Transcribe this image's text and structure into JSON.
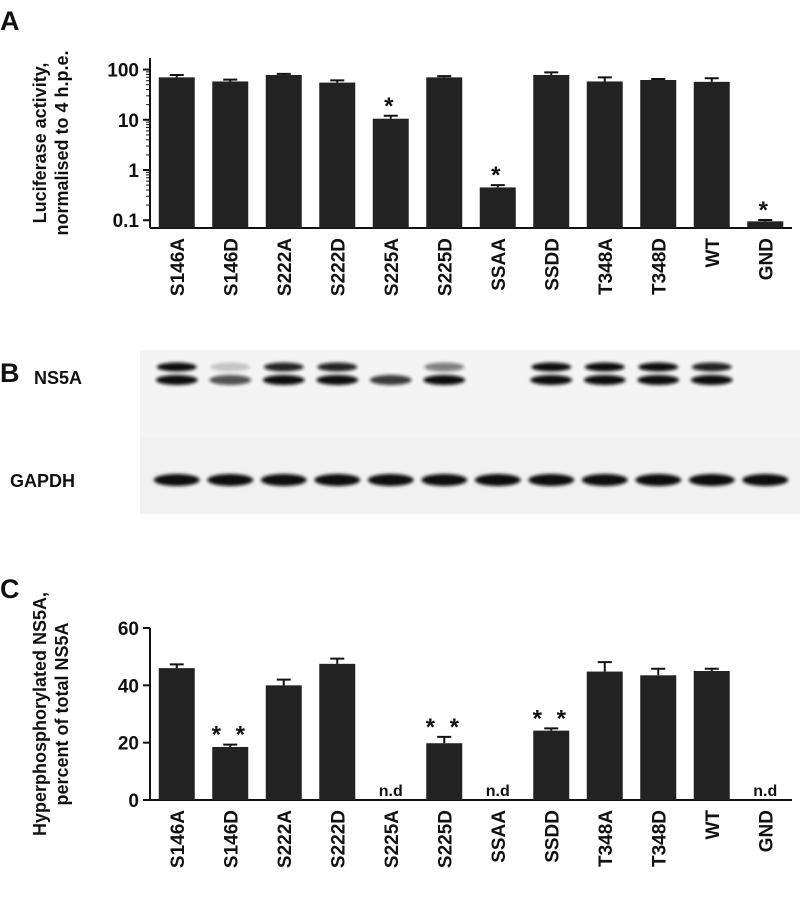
{
  "chart_data": [
    {
      "type": "bar",
      "panel_label": "A",
      "ylabel": [
        "Luciferase activity,",
        "normalised to 4 h.p.e."
      ],
      "categories": [
        "S146A",
        "S146D",
        "S222A",
        "S222D",
        "S225A",
        "S225D",
        "SSAA",
        "SSDD",
        "T348A",
        "T348D",
        "WT",
        "GND"
      ],
      "values": [
        70,
        58,
        78,
        55,
        10.5,
        70,
        0.45,
        78,
        58,
        62,
        57,
        0.095
      ],
      "errors": [
        8,
        5,
        4,
        6,
        1.5,
        4,
        0.05,
        10,
        12,
        3,
        10,
        0.006
      ],
      "markers": [
        null,
        null,
        null,
        null,
        "*",
        null,
        "*",
        null,
        null,
        null,
        null,
        "*"
      ],
      "color": "#222222",
      "log_scale": true,
      "ylim": [
        0.07,
        170
      ],
      "yticks": [
        {
          "value": 0.1,
          "label": "0.1"
        },
        1,
        10,
        100
      ]
    },
    {
      "type": "bar",
      "panel_label": "C",
      "ylabel": [
        "Hyperphosphorylated NS5A,",
        "percent of total NS5A"
      ],
      "categories": [
        "S146A",
        "S146D",
        "S222A",
        "S222D",
        "S225A",
        "S225D",
        "SSAA",
        "SSDD",
        "T348A",
        "T348D",
        "WT",
        "GND"
      ],
      "values": [
        46,
        18.5,
        40,
        47.5,
        null,
        19.8,
        null,
        24.2,
        44.8,
        43.5,
        45,
        null
      ],
      "errors": [
        1.3,
        0.8,
        2,
        1.8,
        null,
        2.2,
        null,
        0.8,
        3.3,
        2.3,
        0.8,
        null
      ],
      "markers": [
        null,
        "* *",
        null,
        null,
        "n.d",
        "* *",
        "n.d",
        "* *",
        null,
        null,
        null,
        "n.d"
      ],
      "color": "#222222",
      "log_scale": false,
      "ylim": [
        0,
        60
      ],
      "yticks": [
        0,
        20,
        40,
        60
      ]
    }
  ],
  "blot": {
    "panel_label": "B",
    "rows": [
      "NS5A",
      "GAPDH"
    ]
  }
}
